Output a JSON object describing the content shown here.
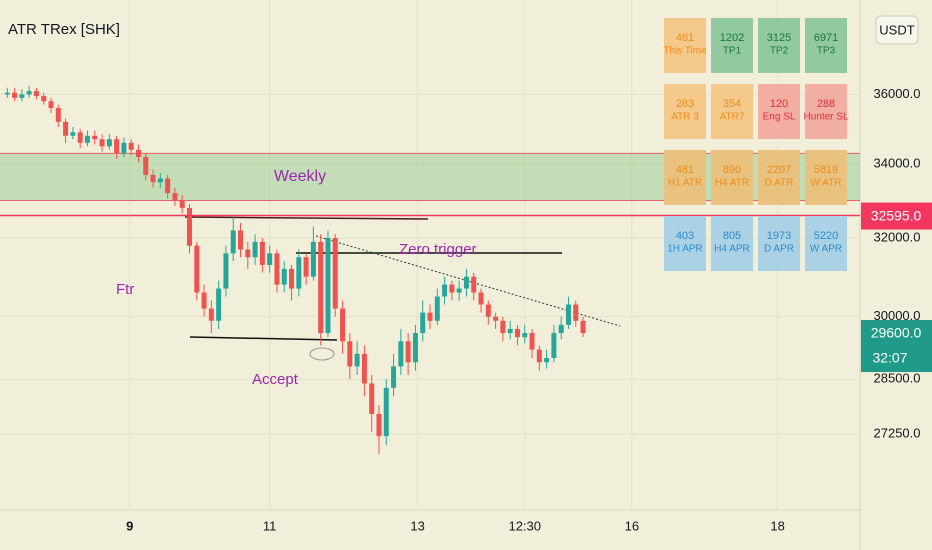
{
  "chart_data": {
    "type": "candlestick",
    "title": "ATR TRex [SHK]",
    "currency": "USDT",
    "x": [
      1,
      2,
      3,
      4,
      5,
      6,
      7,
      8,
      9,
      10,
      11,
      12,
      13,
      14,
      15,
      16,
      17,
      18,
      19,
      20,
      21,
      22,
      23,
      24,
      25,
      26,
      27,
      28,
      29,
      30,
      31,
      32,
      33,
      34,
      35,
      36,
      37,
      38,
      39,
      40,
      41,
      42,
      43,
      44,
      45,
      46,
      47,
      48,
      49,
      50,
      51,
      52,
      53,
      54,
      55,
      56,
      57,
      58,
      59,
      60,
      61,
      62,
      63,
      64,
      65,
      66,
      67,
      68,
      69,
      70,
      71,
      72,
      73,
      74,
      75,
      76,
      77,
      78,
      79,
      80
    ],
    "open": [
      36000,
      36050,
      35900,
      36000,
      36100,
      35950,
      35800,
      35600,
      35200,
      34800,
      34900,
      34600,
      34800,
      34700,
      34500,
      34700,
      34300,
      34600,
      34400,
      34200,
      33700,
      33500,
      33600,
      33200,
      33000,
      32800,
      31800,
      30600,
      30200,
      29900,
      30700,
      31600,
      32200,
      31700,
      31500,
      31900,
      31300,
      31600,
      30800,
      31200,
      30700,
      31500,
      31000,
      31900,
      29600,
      32000,
      30200,
      29400,
      28800,
      29100,
      28400,
      27700,
      27200,
      28300,
      28800,
      29400,
      28900,
      29600,
      30100,
      29900,
      30500,
      30800,
      30600,
      30700,
      31000,
      30600,
      30300,
      30000,
      29900,
      29600,
      29700,
      29500,
      29600,
      29200,
      28900,
      29000,
      29600,
      29800,
      30300,
      29900
    ],
    "high": [
      36200,
      36200,
      36150,
      36250,
      36200,
      36050,
      35900,
      35700,
      35300,
      35050,
      35000,
      34950,
      34950,
      34850,
      34850,
      34800,
      34750,
      34700,
      34550,
      34300,
      33850,
      33750,
      33700,
      33350,
      33150,
      32900,
      31900,
      30800,
      30400,
      30900,
      31800,
      32600,
      32400,
      31900,
      32100,
      32000,
      31800,
      31700,
      31400,
      31300,
      31700,
      31600,
      32300,
      32100,
      32200,
      32100,
      30400,
      29600,
      29400,
      29300,
      28600,
      27900,
      28500,
      29100,
      29700,
      29600,
      29800,
      30400,
      30300,
      30700,
      31000,
      30900,
      30900,
      31200,
      31100,
      30700,
      30400,
      30100,
      30000,
      29900,
      29800,
      29800,
      29700,
      29300,
      29200,
      29800,
      30000,
      30500,
      30400,
      30000
    ],
    "low": [
      35900,
      35800,
      35800,
      35900,
      35850,
      35700,
      35450,
      35050,
      34600,
      34700,
      34450,
      34500,
      34550,
      34350,
      34400,
      34150,
      34200,
      34250,
      34050,
      33550,
      33350,
      33350,
      33050,
      32850,
      32650,
      31600,
      30400,
      30000,
      29600,
      29700,
      30500,
      31400,
      31500,
      31200,
      31300,
      31100,
      31100,
      30600,
      30600,
      30400,
      30500,
      30800,
      30900,
      29300,
      29500,
      30000,
      29100,
      28500,
      28600,
      28100,
      27300,
      26800,
      27000,
      28100,
      28600,
      28600,
      28700,
      29400,
      29700,
      29800,
      30300,
      30400,
      30400,
      30500,
      30400,
      30100,
      29800,
      29700,
      29400,
      29450,
      29300,
      29350,
      29000,
      28700,
      28750,
      28900,
      29450,
      29700,
      29750,
      29500
    ],
    "close": [
      36050,
      35900,
      36000,
      36100,
      35950,
      35800,
      35600,
      35200,
      34800,
      34900,
      34600,
      34800,
      34700,
      34500,
      34700,
      34300,
      34600,
      34400,
      34200,
      33700,
      33500,
      33600,
      33200,
      33000,
      32800,
      31800,
      30600,
      30200,
      29900,
      30700,
      31600,
      32200,
      31700,
      31500,
      31900,
      31300,
      31600,
      30800,
      31200,
      30700,
      31500,
      31000,
      31900,
      29600,
      32000,
      30200,
      29400,
      28800,
      29100,
      28400,
      27700,
      27200,
      28300,
      28800,
      29400,
      28900,
      29600,
      30100,
      29900,
      30500,
      30800,
      30600,
      30700,
      31000,
      30600,
      30300,
      30000,
      29900,
      29600,
      29700,
      29500,
      29600,
      29200,
      28900,
      29000,
      29600,
      29800,
      30300,
      29900,
      29600
    ],
    "up_color": "#26a69a",
    "down_color": "#ef5350",
    "xlim": [
      0,
      118
    ],
    "xticks": [
      {
        "value": 17.8,
        "label": "9"
      },
      {
        "value": 37,
        "label": "11"
      },
      {
        "value": 57.3,
        "label": "13"
      },
      {
        "value": 72,
        "label": "12:30"
      },
      {
        "value": 86.7,
        "label": "16"
      },
      {
        "value": 106.7,
        "label": "18"
      }
    ],
    "ylim": [
      25600,
      38900
    ],
    "log_scale": true,
    "grid": true,
    "yticks": [
      {
        "value": 36000,
        "label": "36000.0"
      },
      {
        "value": 34000,
        "label": "34000.0"
      },
      {
        "value": 32000,
        "label": "32000.0"
      },
      {
        "value": 30000,
        "label": "30000.0"
      },
      {
        "value": 28500,
        "label": "28500.0"
      },
      {
        "value": 27250,
        "label": "27250.0"
      }
    ],
    "price_lines": [
      {
        "value": 32595,
        "label": "32595.0",
        "color": "#f23660"
      },
      {
        "value": 29600,
        "label": "29600.0",
        "timer": "32:07",
        "color": "#1f9a88"
      }
    ],
    "zones": [
      {
        "label": "Weekly",
        "top": 34300,
        "bottom": 33000
      }
    ],
    "annotations": [
      "Zero trigger",
      "Ftr",
      "Accept"
    ],
    "info_table": [
      [
        {
          "value": 481,
          "label": "This Time",
          "color": "#f5c98c",
          "text": "#f08c18"
        },
        {
          "value": 1202,
          "label": "TP1",
          "color": "#93c9a0",
          "text": "#177a3a"
        },
        {
          "value": 3125,
          "label": "TP2",
          "color": "#93c9a0",
          "text": "#177a3a"
        },
        {
          "value": 6971,
          "label": "TP3",
          "color": "#93c9a0",
          "text": "#177a3a"
        }
      ],
      [
        {
          "value": 283,
          "label": "ATR 3",
          "color": "#f5c98c",
          "text": "#f08c18"
        },
        {
          "value": 354,
          "label": "ATR7",
          "color": "#f5c98c",
          "text": "#f08c18"
        },
        {
          "value": 120,
          "label": "Eng SL",
          "color": "#f3aea3",
          "text": "#e0303a"
        },
        {
          "value": 288,
          "label": "Hunter SL",
          "color": "#f3aea3",
          "text": "#e0303a"
        }
      ],
      [
        {
          "value": 481,
          "label": "H1 ATR",
          "color": "#e8c27e",
          "text": "#f08c18"
        },
        {
          "value": 890,
          "label": "H4 ATR",
          "color": "#e8c27e",
          "text": "#f08c18"
        },
        {
          "value": 2207,
          "label": "D ATR",
          "color": "#e8c27e",
          "text": "#f08c18"
        },
        {
          "value": 5819,
          "label": "W ATR",
          "color": "#e8c27e",
          "text": "#f08c18"
        }
      ],
      [
        {
          "value": 403,
          "label": "1H APR",
          "color": "#abd1e4",
          "text": "#2a8bd0"
        },
        {
          "value": 805,
          "label": "H4 APR",
          "color": "#abd1e4",
          "text": "#2a8bd0"
        },
        {
          "value": 1973,
          "label": "D APR",
          "color": "#abd1e4",
          "text": "#2a8bd0"
        },
        {
          "value": 5220,
          "label": "W APR",
          "color": "#abd1e4",
          "text": "#2a8bd0"
        }
      ]
    ]
  }
}
